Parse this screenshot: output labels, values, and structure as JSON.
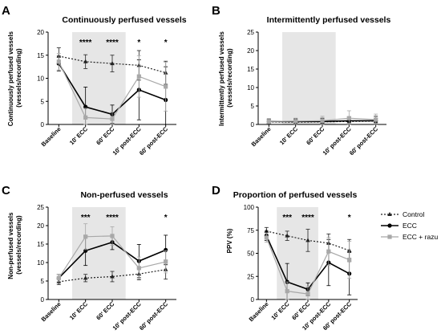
{
  "legend": {
    "entries": [
      {
        "key": "control",
        "label": "Control",
        "color": "#222222",
        "dash": "2,2",
        "marker": "triangle"
      },
      {
        "key": "ecc",
        "label": "ECC",
        "color": "#000000",
        "dash": "",
        "marker": "circle"
      },
      {
        "key": "razu",
        "label": "ECC + razu",
        "color": "#a8a8a8",
        "dash": "",
        "marker": "square"
      }
    ]
  },
  "chart_data": [
    {
      "type": "line",
      "letter": "A",
      "title": "Continuously perfused vessels",
      "ylabel_lines": [
        "Continuously perfused vessels",
        "(vessels/recording)"
      ],
      "categories": [
        "Baseline",
        "10' ECC",
        "60' ECC",
        "10' post-ECC",
        "60' post-ECC"
      ],
      "ylim": [
        0,
        20
      ],
      "yticks": [
        0,
        5,
        10,
        15,
        20
      ],
      "shaded": [
        1,
        2
      ],
      "significance": [
        "",
        "****",
        "****",
        "*",
        "*"
      ],
      "series": [
        {
          "key": "control",
          "values": [
            14.8,
            13.6,
            13.2,
            12.8,
            11.2
          ],
          "errors": [
            1.8,
            1.5,
            1.8,
            3.2,
            2.5
          ]
        },
        {
          "key": "ecc",
          "values": [
            13.2,
            3.8,
            2.2,
            7.5,
            5.3
          ],
          "errors": [
            1.6,
            4.3,
            2.0,
            6.5,
            7.2
          ]
        },
        {
          "key": "razu",
          "values": [
            13.6,
            1.5,
            1.2,
            10.4,
            8.2
          ],
          "errors": [
            1.8,
            2.0,
            1.5,
            4.5,
            5.3
          ]
        }
      ]
    },
    {
      "type": "line",
      "letter": "B",
      "title": "Intermittently perfused vessels",
      "ylabel_lines": [
        "Intermittently perfused vessels",
        "(vessels/recording)"
      ],
      "categories": [
        "Baseline",
        "10' ECC",
        "60' ECC",
        "10' post-ECC",
        "60' post-ECC"
      ],
      "ylim": [
        0,
        25
      ],
      "yticks": [
        0,
        5,
        10,
        15,
        20,
        25
      ],
      "shaded": [
        1,
        2
      ],
      "significance": [
        "",
        "",
        "",
        "",
        ""
      ],
      "series": [
        {
          "key": "control",
          "values": [
            0.7,
            0.6,
            0.7,
            0.8,
            0.9
          ],
          "errors": [
            0.6,
            0.6,
            0.6,
            0.7,
            0.7
          ]
        },
        {
          "key": "ecc",
          "values": [
            0.8,
            0.8,
            0.8,
            1.0,
            1.0
          ],
          "errors": [
            0.7,
            0.7,
            0.9,
            1.0,
            1.2
          ]
        },
        {
          "key": "razu",
          "values": [
            0.8,
            0.9,
            1.0,
            1.7,
            1.3
          ],
          "errors": [
            0.6,
            0.8,
            1.2,
            2.0,
            1.5
          ]
        }
      ]
    },
    {
      "type": "line",
      "letter": "C",
      "title": "Non-perfused vessels",
      "ylabel_lines": [
        "Non-perfused vessels",
        "(vessels/recording)"
      ],
      "categories": [
        "Baseline",
        "10' ECC",
        "60' ECC",
        "10' post-ECC",
        "60' post-ECC"
      ],
      "ylim": [
        0,
        25
      ],
      "yticks": [
        0,
        5,
        10,
        15,
        20,
        25
      ],
      "shaded": [
        1,
        2
      ],
      "significance": [
        "",
        "***",
        "****",
        "",
        "*"
      ],
      "series": [
        {
          "key": "control",
          "values": [
            4.8,
            5.8,
            6.2,
            6.9,
            8.1
          ],
          "errors": [
            0.8,
            1.0,
            1.4,
            1.6,
            2.6
          ]
        },
        {
          "key": "ecc",
          "values": [
            5.8,
            13.2,
            15.5,
            10.4,
            13.4
          ],
          "errors": [
            1.0,
            4.0,
            2.0,
            4.5,
            4.0
          ]
        },
        {
          "key": "razu",
          "values": [
            5.8,
            17.0,
            17.2,
            8.5,
            10.2
          ],
          "errors": [
            1.0,
            3.5,
            2.5,
            3.0,
            3.0
          ]
        }
      ]
    },
    {
      "type": "line",
      "letter": "D",
      "title": "Proportion of perfused vessels",
      "ylabel_lines": [
        "PPV (%)"
      ],
      "categories": [
        "Baseline",
        "10' ECC",
        "60' ECC",
        "10' post-ECC",
        "60' post-ECC"
      ],
      "ylim": [
        0,
        100
      ],
      "yticks": [
        0,
        25,
        50,
        75,
        100
      ],
      "shaded": [
        1,
        2
      ],
      "significance": [
        "",
        "***",
        "****",
        "",
        "*"
      ],
      "series": [
        {
          "key": "control",
          "values": [
            74,
            69,
            64,
            61,
            53
          ],
          "errors": [
            4,
            5,
            12,
            10,
            12
          ]
        },
        {
          "key": "ecc",
          "values": [
            69,
            19,
            11,
            40,
            28
          ],
          "errors": [
            5,
            20,
            7,
            25,
            23
          ]
        },
        {
          "key": "razu",
          "values": [
            67,
            9,
            6,
            52,
            43
          ],
          "errors": [
            5,
            10,
            8,
            15,
            20
          ]
        }
      ]
    }
  ]
}
